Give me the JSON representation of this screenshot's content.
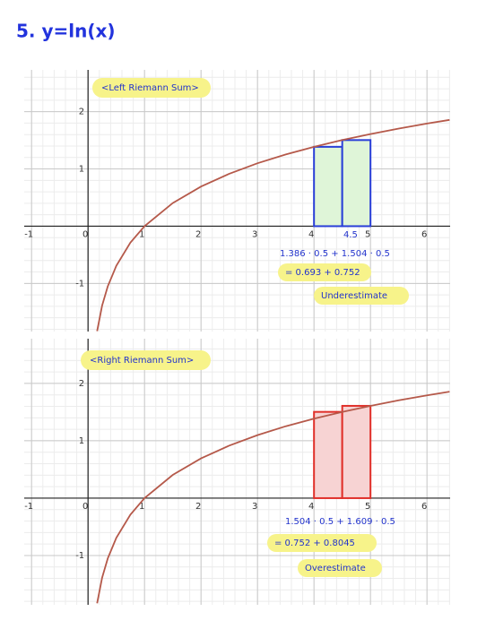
{
  "heading": "5. y=ln(x)",
  "chart_data": [
    {
      "type": "riemann",
      "title": "<Left Riemann Sum>",
      "x": [
        0.16,
        0.25,
        0.35,
        0.5,
        0.75,
        1,
        1.5,
        2,
        2.5,
        3,
        3.5,
        4,
        4.5,
        5,
        5.5,
        6,
        6.4
      ],
      "series": [
        {
          "color": "#b5594a",
          "values": [
            -1.833,
            -1.386,
            -1.05,
            -0.693,
            -0.288,
            0,
            0.405,
            0.693,
            0.916,
            1.099,
            1.253,
            1.386,
            1.504,
            1.609,
            1.705,
            1.792,
            1.856
          ]
        }
      ],
      "rectangles": [
        {
          "x": [
            4,
            4.5
          ],
          "height": 1.386
        },
        {
          "x": [
            4.5,
            5
          ],
          "height": 1.504
        }
      ],
      "rect_color": "#2a3fd8",
      "rect_fill": "#dff5d8",
      "annotations": [
        "4.5",
        "1.386 · 0.5 + 1.504 · 0.5",
        "= 0.693 + 0.752",
        "Underestimate"
      ],
      "xlim": [
        -1.13,
        6.41
      ],
      "ylim": [
        -1.84,
        2.73
      ],
      "xticks": [
        -1,
        0,
        1,
        2,
        3,
        4,
        5,
        6
      ],
      "yticks": [
        -1,
        0,
        1,
        2
      ],
      "grid": true
    },
    {
      "type": "riemann",
      "title": "<Right Riemann Sum>",
      "x": [
        0.16,
        0.25,
        0.35,
        0.5,
        0.75,
        1,
        1.5,
        2,
        2.5,
        3,
        3.5,
        4,
        4.5,
        5,
        5.5,
        6,
        6.4
      ],
      "series": [
        {
          "color": "#b5594a",
          "values": [
            -1.833,
            -1.386,
            -1.05,
            -0.693,
            -0.288,
            0,
            0.405,
            0.693,
            0.916,
            1.099,
            1.253,
            1.386,
            1.504,
            1.609,
            1.705,
            1.792,
            1.856
          ]
        }
      ],
      "rectangles": [
        {
          "x": [
            4,
            4.5
          ],
          "height": 1.504
        },
        {
          "x": [
            4.5,
            5
          ],
          "height": 1.609
        }
      ],
      "rect_color": "#e0302a",
      "rect_fill": "#f7d3d3",
      "annotations": [
        "1.504 · 0.5 + 1.609 · 0.5",
        "= 0.752 + 0.8045",
        "Overestimate"
      ],
      "xlim": [
        -1.13,
        6.41
      ],
      "ylim": [
        -1.86,
        2.78
      ],
      "xticks": [
        -1,
        0,
        1,
        2,
        3,
        4,
        5,
        6
      ],
      "yticks": [
        -1,
        0,
        1,
        2
      ],
      "grid": true
    }
  ]
}
